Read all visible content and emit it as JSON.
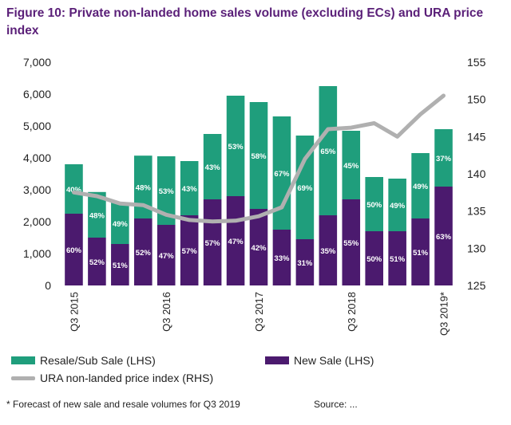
{
  "title": "Figure 10: Private non-landed home sales volume (excluding ECs) and URA price index",
  "footnote": "* Forecast of new sale and resale volumes for Q3 2019",
  "source": "Source: ...",
  "colors": {
    "resale": "#1f9e7c",
    "new_sale": "#4b1a6e",
    "index": "#b0b0b0",
    "title": "#5a1f78"
  },
  "chart_data": {
    "type": "bar",
    "stacked": true,
    "title": "Figure 10: Private non-landed home sales volume (excluding ECs) and URA price index",
    "x_tick_labels": [
      "Q3 2015",
      "Q3 2016",
      "Q3 2017",
      "Q3 2018",
      "Q3 2019*"
    ],
    "left_axis": {
      "ylim": [
        0,
        7000
      ],
      "ticks": [
        "0",
        "1,000",
        "2,000",
        "3,000",
        "4,000",
        "5,000",
        "6,000",
        "7,000"
      ]
    },
    "right_axis": {
      "ylim": [
        125,
        155
      ],
      "ticks": [
        "125",
        "130",
        "135",
        "140",
        "145",
        "150",
        "155"
      ]
    },
    "grid": false,
    "legend_placement": "bottom",
    "series": [
      {
        "name": "New Sale (LHS)",
        "axis": "left",
        "values": [
          2250,
          1500,
          1300,
          2100,
          1900,
          2200,
          2700,
          2800,
          2400,
          1750,
          1450,
          2200,
          2700,
          1700,
          1700,
          2100,
          3100
        ]
      },
      {
        "name": "Resale/Sub Sale (LHS)",
        "axis": "left",
        "values": [
          1550,
          1430,
          1300,
          1970,
          2150,
          1700,
          2050,
          3150,
          3350,
          3550,
          3250,
          4050,
          2150,
          1700,
          1650,
          2050,
          1800
        ]
      },
      {
        "name": "URA non-landed price index (RHS)",
        "axis": "right",
        "type": "line",
        "values": [
          137.5,
          137,
          136,
          135.8,
          134.5,
          133.8,
          133.6,
          133.7,
          134.3,
          135.5,
          142,
          146,
          146.2,
          146.8,
          145,
          148,
          150.5
        ]
      }
    ],
    "new_sale_pct_labels": [
      "60%",
      "52%",
      "51%",
      "52%",
      "47%",
      "57%",
      "57%",
      "47%",
      "42%",
      "33%",
      "31%",
      "35%",
      "55%",
      "50%",
      "51%",
      "51%",
      "63%"
    ],
    "resale_pct_labels": [
      "40%",
      "48%",
      "49%",
      "48%",
      "53%",
      "43%",
      "43%",
      "53%",
      "58%",
      "67%",
      "69%",
      "65%",
      "45%",
      "50%",
      "49%",
      "49%",
      "37%"
    ]
  }
}
